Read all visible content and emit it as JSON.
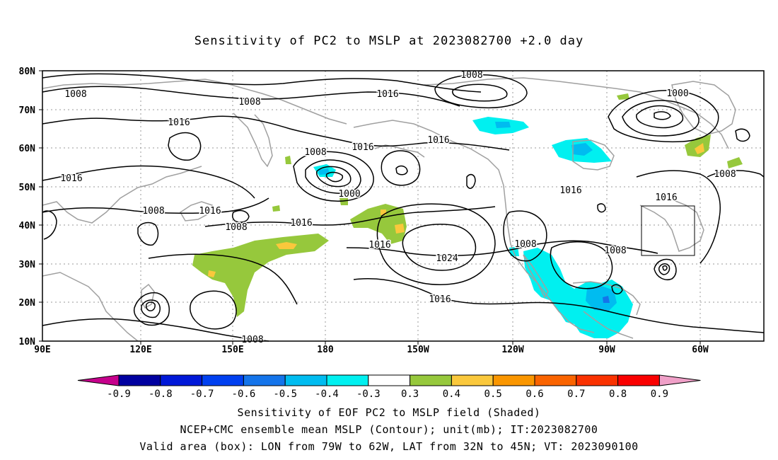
{
  "title": "Sensitivity of PC2 to MSLP at 2023082700 +2.0 day",
  "map": {
    "lat_labels": [
      "80N",
      "70N",
      "60N",
      "50N",
      "40N",
      "30N",
      "20N",
      "10N"
    ],
    "lon_labels": [
      "90E",
      "120E",
      "150E",
      "180",
      "150W",
      "120W",
      "90W",
      "60W"
    ],
    "contour_labels": [
      {
        "text": "1008"
      },
      {
        "text": "1008"
      },
      {
        "text": "1016"
      },
      {
        "text": "1008"
      },
      {
        "text": "1000"
      },
      {
        "text": "1016"
      },
      {
        "text": "1016"
      },
      {
        "text": "1016"
      },
      {
        "text": "1008"
      },
      {
        "text": "1016"
      },
      {
        "text": "1008"
      },
      {
        "text": "1016"
      },
      {
        "text": "1008"
      },
      {
        "text": "1000"
      },
      {
        "text": "1016"
      },
      {
        "text": "1016"
      },
      {
        "text": "1024"
      },
      {
        "text": "1008"
      },
      {
        "text": "1016"
      },
      {
        "text": "1008"
      },
      {
        "text": "1016"
      },
      {
        "text": "1008"
      }
    ],
    "valid_box": {
      "lon_from": "79W",
      "lon_to": "62W",
      "lat_from": "32N",
      "lat_to": "45N"
    }
  },
  "colorbar": {
    "ticks": [
      "-0.9",
      "-0.8",
      "-0.7",
      "-0.6",
      "-0.5",
      "-0.4",
      "-0.3",
      "0.3",
      "0.4",
      "0.5",
      "0.6",
      "0.7",
      "0.8",
      "0.9"
    ],
    "colors": [
      "#c6008c",
      "#0000a0",
      "#0018d8",
      "#0040f0",
      "#1474ea",
      "#00bcf0",
      "#00f0f0",
      "#ffffff",
      "#96c83c",
      "#fac83c",
      "#fa9600",
      "#fa6400",
      "#fa3200",
      "#fa0000",
      "#f0a0c8"
    ]
  },
  "captions": [
    "Sensitivity of EOF PC2 to MSLP field (Shaded)",
    "NCEP+CMC ensemble mean MSLP (Contour); unit(mb); IT:2023082700",
    "Valid area (box): LON from 79W to 62W, LAT from 32N to 45N; VT: 2023090100"
  ]
}
